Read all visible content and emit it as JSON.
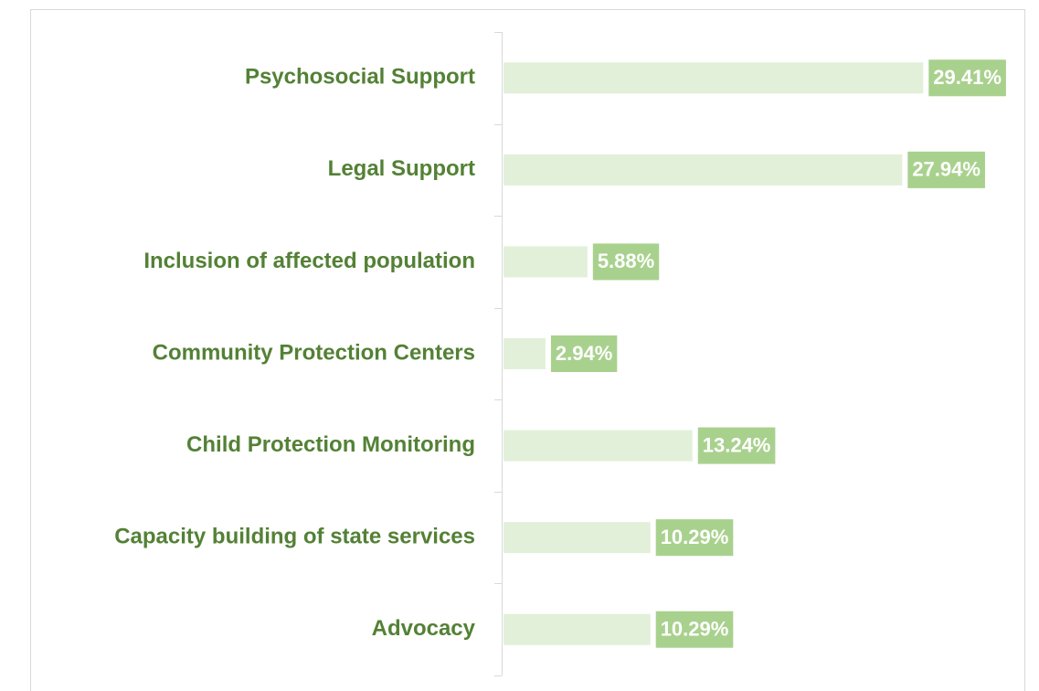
{
  "chart_data": {
    "type": "bar",
    "orientation": "horizontal",
    "categories": [
      "Psychosocial Support",
      "Legal Support",
      "Inclusion of affected population",
      "Community Protection Centers",
      "Child Protection Monitoring",
      "Capacity building of state services",
      "Advocacy"
    ],
    "values": [
      29.41,
      27.94,
      5.88,
      2.94,
      13.24,
      10.29,
      10.29
    ],
    "value_labels": [
      "29.41%",
      "27.94%",
      "5.88%",
      "2.94%",
      "13.24%",
      "10.29%",
      "10.29%"
    ],
    "color": "#e2f0d9",
    "label_color": "#a9d18e",
    "xlim": [
      0,
      36.5
    ]
  }
}
